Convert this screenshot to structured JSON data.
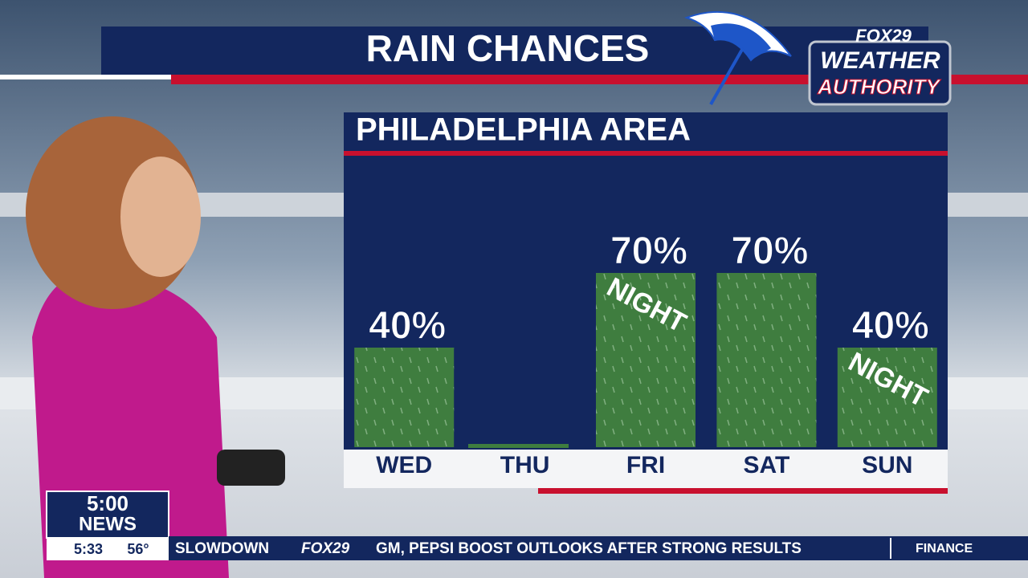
{
  "header": {
    "title": "RAIN CHANCES"
  },
  "logo": {
    "network": "FOX29",
    "line1": "WEATHER",
    "line2": "AUTHORITY"
  },
  "chart_data": {
    "type": "bar",
    "title": "PHILADELPHIA AREA",
    "categories": [
      "WED",
      "THU",
      "FRI",
      "SAT",
      "SUN"
    ],
    "values": [
      40,
      0,
      70,
      70,
      40
    ],
    "value_labels": [
      "40%",
      null,
      "70%",
      "70%",
      "40%"
    ],
    "bar_notes": [
      null,
      null,
      "NIGHT",
      null,
      "NIGHT"
    ],
    "color": "#3f7d3f",
    "ylim": [
      0,
      80
    ]
  },
  "newscast": {
    "time_slot": "5:00",
    "program": "NEWS",
    "clock": "5:33",
    "temperature": "56°"
  },
  "ticker": {
    "items": [
      "SLOWDOWN",
      "FOX29",
      "GM, PEPSI BOOST OUTLOOKS AFTER STRONG RESULTS"
    ],
    "section": "FINANCE"
  }
}
